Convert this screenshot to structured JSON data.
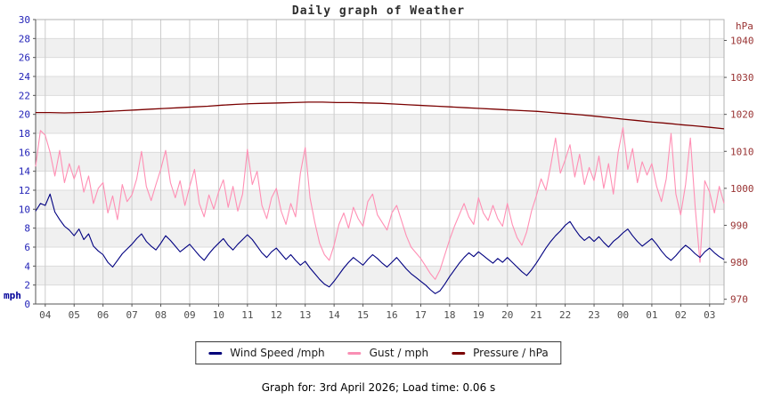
{
  "caption": "Graph for: 3rd April 2026; Load time: 0.06 s",
  "legend": [
    {
      "label": "Wind Speed /mph",
      "color": "#00007a"
    },
    {
      "label": "Gust / mph",
      "color": "#f98fb4"
    },
    {
      "label": "Pressure / hPa",
      "color": "#7a0000"
    }
  ],
  "colors": {
    "wind": "#000080",
    "gust": "#ff8fb4",
    "pressure": "#7a0000",
    "left_axis_text": "#2323b8",
    "right_axis_text": "#993333",
    "x_axis_text": "#4d4d4d",
    "grid_vertical": "#cccccc",
    "grid_horizontal": "#dcdcdc",
    "band_fill": "#f0f0f0",
    "plot_border": "#b0b0b0",
    "axis_line": "#555555"
  },
  "chart_data": {
    "type": "line",
    "title": "Daily graph of Weather",
    "x_axis": {
      "tick_labels": [
        "04",
        "05",
        "06",
        "07",
        "08",
        "09",
        "10",
        "11",
        "12",
        "13",
        "14",
        "15",
        "16",
        "17",
        "18",
        "19",
        "20",
        "21",
        "22",
        "23",
        "00",
        "01",
        "02",
        "03"
      ],
      "domain_hours": [
        3.667,
        27.5
      ],
      "grid": true
    },
    "y_left": {
      "label": "mph",
      "min": 0,
      "max": 30,
      "step": 2,
      "ticks": [
        0,
        2,
        4,
        6,
        8,
        10,
        12,
        14,
        16,
        18,
        20,
        22,
        24,
        26,
        28,
        30
      ]
    },
    "y_right": {
      "label": "hPa",
      "ticks": [
        970,
        980,
        990,
        1000,
        1010,
        1020,
        1030,
        1040
      ],
      "scale": {
        "p_ref": 1020,
        "v_ref": 20,
        "v_per_hpa": 0.39
      }
    },
    "series": [
      {
        "name": "Wind Speed /mph",
        "axis": "left",
        "color": "#000080",
        "interval_minutes": 10,
        "values": [
          9.8,
          10.6,
          10.4,
          11.6,
          9.7,
          8.9,
          8.2,
          7.8,
          7.2,
          7.9,
          6.8,
          7.4,
          6.1,
          5.6,
          5.2,
          4.4,
          3.9,
          4.6,
          5.3,
          5.8,
          6.3,
          6.9,
          7.4,
          6.6,
          6.1,
          5.7,
          6.4,
          7.2,
          6.7,
          6.1,
          5.5,
          5.9,
          6.3,
          5.7,
          5.1,
          4.6,
          5.3,
          5.9,
          6.4,
          6.9,
          6.2,
          5.7,
          6.3,
          6.8,
          7.3,
          6.8,
          6.1,
          5.4,
          4.9,
          5.5,
          5.9,
          5.3,
          4.7,
          5.2,
          4.6,
          4.1,
          4.5,
          3.8,
          3.2,
          2.6,
          2.1,
          1.8,
          2.4,
          3.1,
          3.8,
          4.4,
          4.9,
          4.5,
          4.1,
          4.7,
          5.2,
          4.8,
          4.3,
          3.9,
          4.4,
          4.9,
          4.3,
          3.7,
          3.2,
          2.8,
          2.4,
          2.0,
          1.5,
          1.1,
          1.4,
          2.1,
          2.9,
          3.6,
          4.3,
          4.9,
          5.4,
          5.0,
          5.5,
          5.1,
          4.7,
          4.3,
          4.8,
          4.4,
          4.9,
          4.4,
          3.9,
          3.4,
          3.0,
          3.6,
          4.3,
          5.1,
          5.9,
          6.6,
          7.2,
          7.7,
          8.3,
          8.7,
          7.9,
          7.2,
          6.7,
          7.1,
          6.6,
          7.1,
          6.5,
          6.0,
          6.6,
          7.0,
          7.5,
          7.9,
          7.2,
          6.6,
          6.1,
          6.5,
          6.9,
          6.3,
          5.6,
          5.0,
          4.6,
          5.1,
          5.7,
          6.2,
          5.8,
          5.3,
          4.9,
          5.5,
          5.9,
          5.4,
          5.0,
          4.7
        ]
      },
      {
        "name": "Gust / mph",
        "axis": "left",
        "color": "#ff8fb4",
        "interval_minutes": 10,
        "values": [
          14.5,
          18.3,
          17.8,
          16.0,
          13.5,
          16.2,
          12.8,
          14.8,
          13.2,
          14.6,
          11.8,
          13.5,
          10.6,
          12.2,
          12.8,
          9.6,
          11.4,
          8.9,
          12.6,
          10.8,
          11.5,
          13.2,
          16.1,
          12.4,
          10.9,
          12.6,
          14.2,
          16.2,
          12.8,
          11.2,
          13.0,
          10.4,
          12.4,
          14.2,
          10.6,
          9.2,
          11.5,
          10.0,
          11.8,
          13.1,
          10.2,
          12.4,
          9.8,
          11.6,
          16.3,
          12.6,
          14.0,
          10.4,
          9.0,
          11.2,
          12.2,
          9.8,
          8.4,
          10.6,
          9.2,
          13.8,
          16.5,
          11.2,
          8.6,
          6.4,
          5.2,
          4.6,
          6.2,
          8.4,
          9.6,
          8.0,
          10.2,
          9.0,
          8.2,
          10.8,
          11.6,
          9.4,
          8.6,
          7.8,
          9.6,
          10.4,
          8.8,
          7.2,
          6.0,
          5.4,
          4.8,
          4.0,
          3.2,
          2.6,
          3.6,
          5.2,
          6.8,
          8.2,
          9.4,
          10.6,
          9.2,
          8.4,
          11.2,
          9.6,
          8.8,
          10.4,
          9.0,
          8.2,
          10.6,
          8.4,
          7.0,
          6.2,
          7.6,
          9.8,
          11.4,
          13.2,
          12.0,
          14.6,
          17.5,
          13.8,
          15.2,
          16.8,
          13.4,
          15.8,
          12.6,
          14.4,
          13.0,
          15.6,
          12.2,
          14.8,
          11.6,
          16.0,
          18.6,
          14.2,
          16.4,
          12.8,
          15.0,
          13.6,
          14.8,
          12.4,
          10.8,
          13.2,
          18.0,
          11.6,
          9.4,
          12.6,
          17.5,
          10.2,
          4.4,
          13.0,
          11.8,
          9.6,
          12.4,
          10.6
        ]
      },
      {
        "name": "Pressure / hPa",
        "axis": "right",
        "color": "#7a0000",
        "interval_minutes": 30,
        "values": [
          1020.5,
          1020.5,
          1020.4,
          1020.5,
          1020.6,
          1020.8,
          1021.0,
          1021.2,
          1021.4,
          1021.6,
          1021.8,
          1022.0,
          1022.2,
          1022.5,
          1022.7,
          1022.9,
          1023.0,
          1023.1,
          1023.2,
          1023.3,
          1023.3,
          1023.2,
          1023.2,
          1023.1,
          1023.0,
          1022.8,
          1022.6,
          1022.4,
          1022.2,
          1022.0,
          1021.8,
          1021.6,
          1021.4,
          1021.2,
          1021.0,
          1020.8,
          1020.5,
          1020.2,
          1019.9,
          1019.5,
          1019.1,
          1018.7,
          1018.3,
          1017.9,
          1017.6,
          1017.2,
          1016.9,
          1016.5,
          1016.1
        ]
      }
    ]
  }
}
